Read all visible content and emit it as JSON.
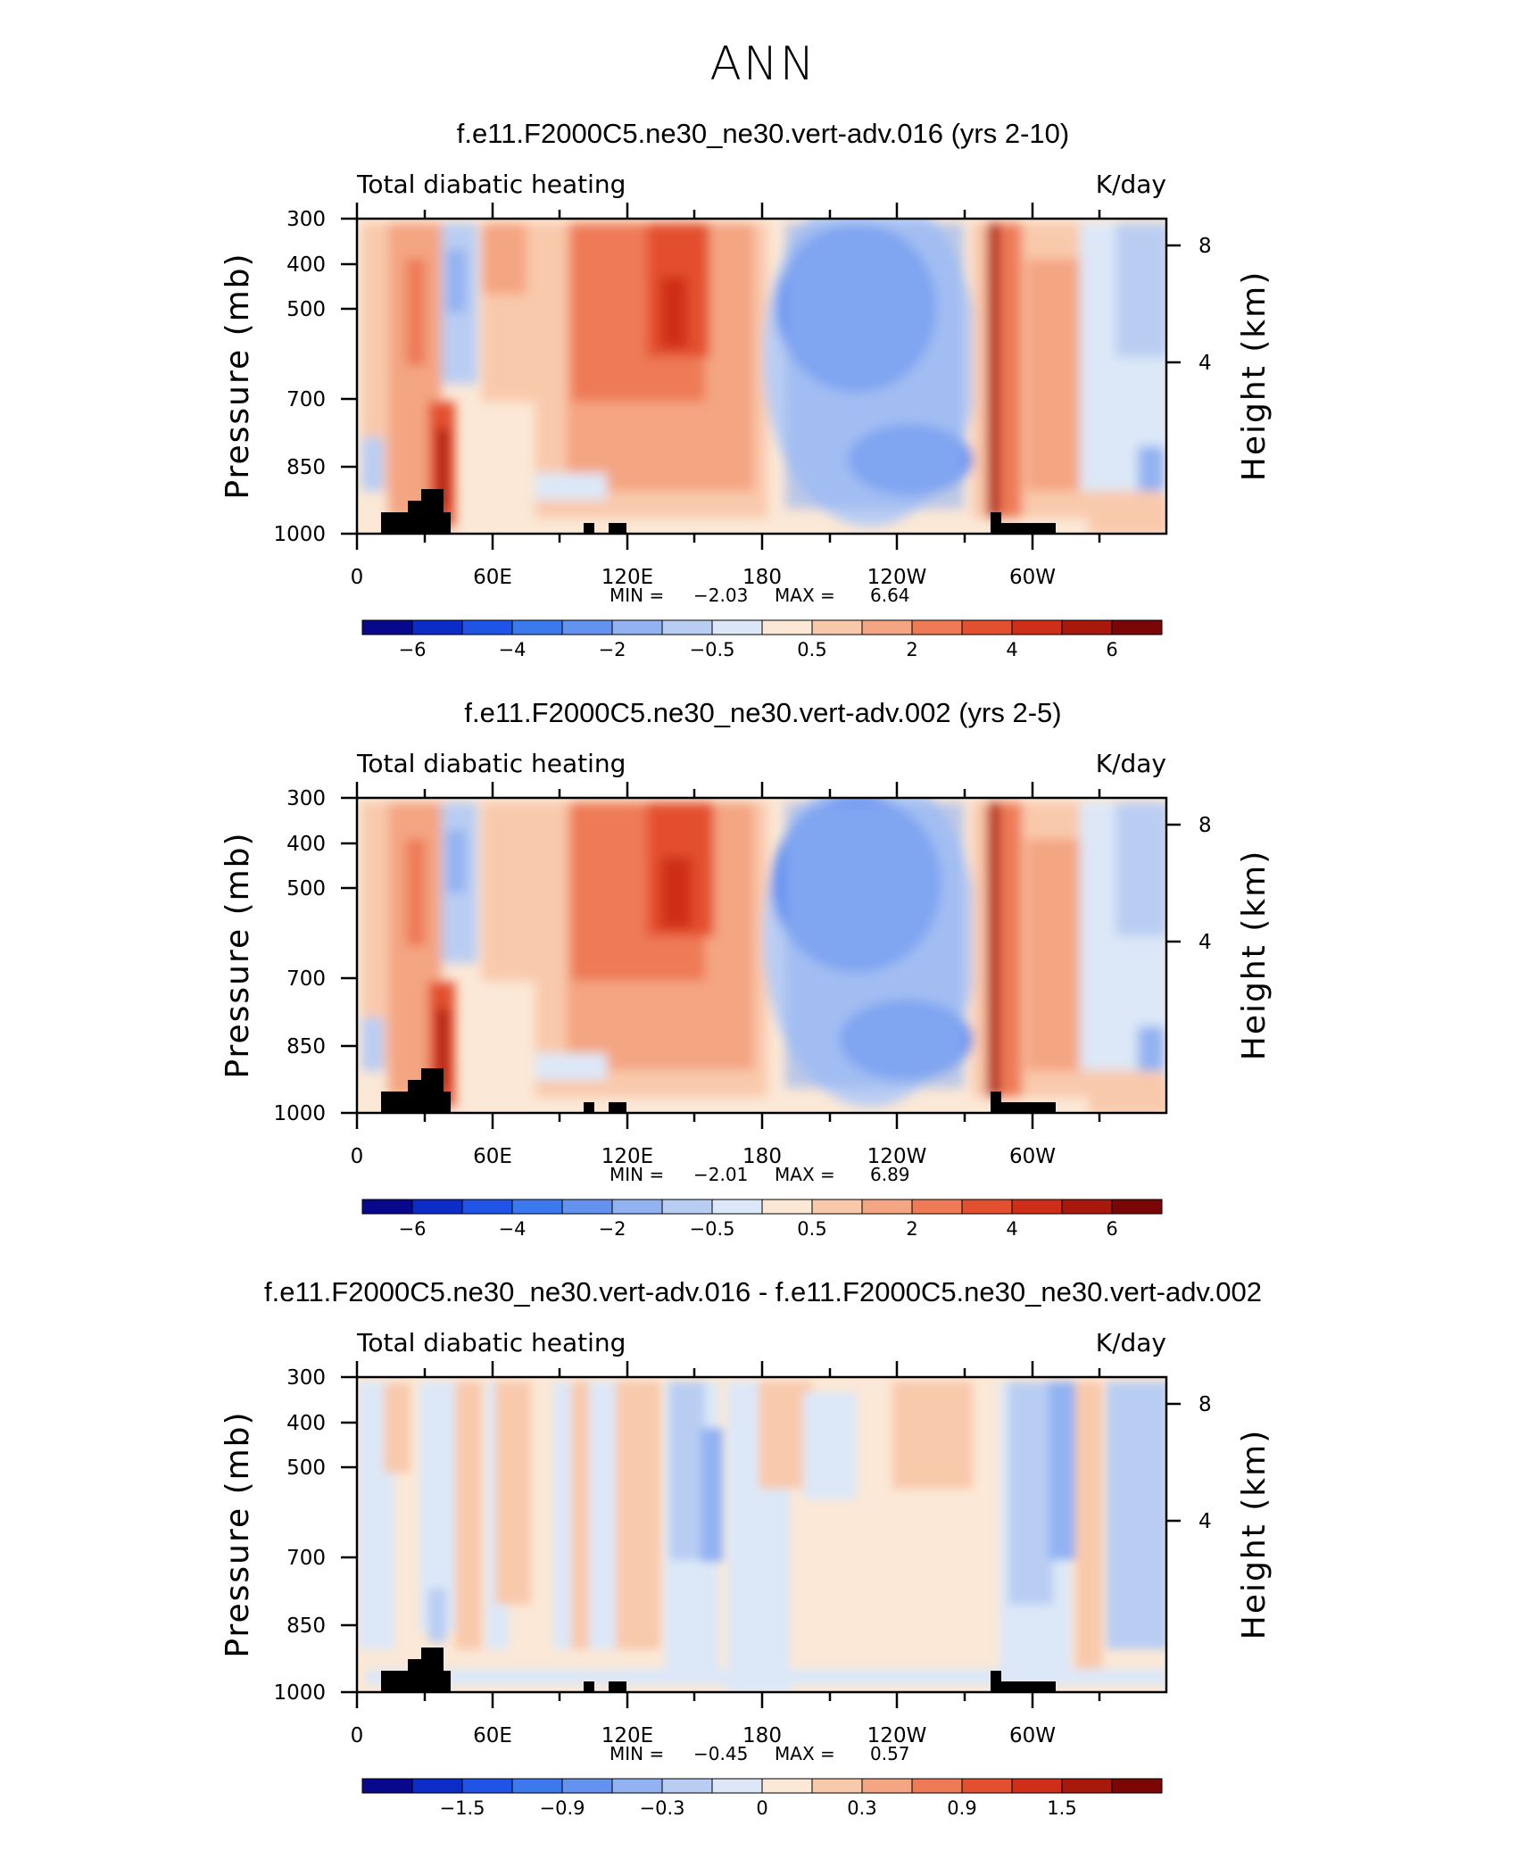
{
  "page_title": "ANN",
  "chart_data": [
    {
      "type": "heatmap",
      "title": "f.e11.F2000C5.ne30_ne30.vert-adv.016 (yrs 2-10)",
      "variable": "Total diabatic heating",
      "units": "K/day",
      "ylabel": "Pressure (mb)",
      "ylabel_right": "Height (km)",
      "y_ticks": [
        "300",
        "400",
        "500",
        "700",
        "850",
        "1000"
      ],
      "y_right_ticks": [
        "8",
        "4"
      ],
      "x_ticks": [
        "0",
        "60E",
        "120E",
        "180",
        "120W",
        "60W"
      ],
      "min_label": "MIN =",
      "min": "−2.03",
      "max_label": "MAX =",
      "max": "6.64",
      "colorbar_labels": [
        "−6",
        "−4",
        "−2",
        "−0.5",
        "0.5",
        "2",
        "4",
        "6"
      ],
      "grid": false
    },
    {
      "type": "heatmap",
      "title": "f.e11.F2000C5.ne30_ne30.vert-adv.002 (yrs 2-5)",
      "variable": "Total diabatic heating",
      "units": "K/day",
      "ylabel": "Pressure (mb)",
      "ylabel_right": "Height (km)",
      "y_ticks": [
        "300",
        "400",
        "500",
        "700",
        "850",
        "1000"
      ],
      "y_right_ticks": [
        "8",
        "4"
      ],
      "x_ticks": [
        "0",
        "60E",
        "120E",
        "180",
        "120W",
        "60W"
      ],
      "min_label": "MIN =",
      "min": "−2.01",
      "max_label": "MAX =",
      "max": "6.89",
      "colorbar_labels": [
        "−6",
        "−4",
        "−2",
        "−0.5",
        "0.5",
        "2",
        "4",
        "6"
      ],
      "grid": false
    },
    {
      "type": "heatmap",
      "title": "f.e11.F2000C5.ne30_ne30.vert-adv.016 - f.e11.F2000C5.ne30_ne30.vert-adv.002",
      "variable": "Total diabatic heating",
      "units": "K/day",
      "ylabel": "Pressure (mb)",
      "ylabel_right": "Height (km)",
      "y_ticks": [
        "300",
        "400",
        "500",
        "700",
        "850",
        "1000"
      ],
      "y_right_ticks": [
        "8",
        "4"
      ],
      "x_ticks": [
        "0",
        "60E",
        "120E",
        "180",
        "120W",
        "60W"
      ],
      "min_label": "MIN =",
      "min": "−0.45",
      "max_label": "MAX =",
      "max": "0.57",
      "colorbar_labels": [
        "−1.5",
        "−0.9",
        "−0.3",
        "0",
        "0.3",
        "0.9",
        "1.5"
      ],
      "grid": false
    }
  ],
  "colormap": [
    "#08088c",
    "#0c2cc8",
    "#1f54e6",
    "#3c78ee",
    "#6492ef",
    "#92b2f2",
    "#b9cdf3",
    "#dce8f8",
    "#fbe8d6",
    "#f9c9ac",
    "#f4a582",
    "#ee7a56",
    "#e3502f",
    "#cf2f18",
    "#a8190c",
    "#7a0606"
  ]
}
